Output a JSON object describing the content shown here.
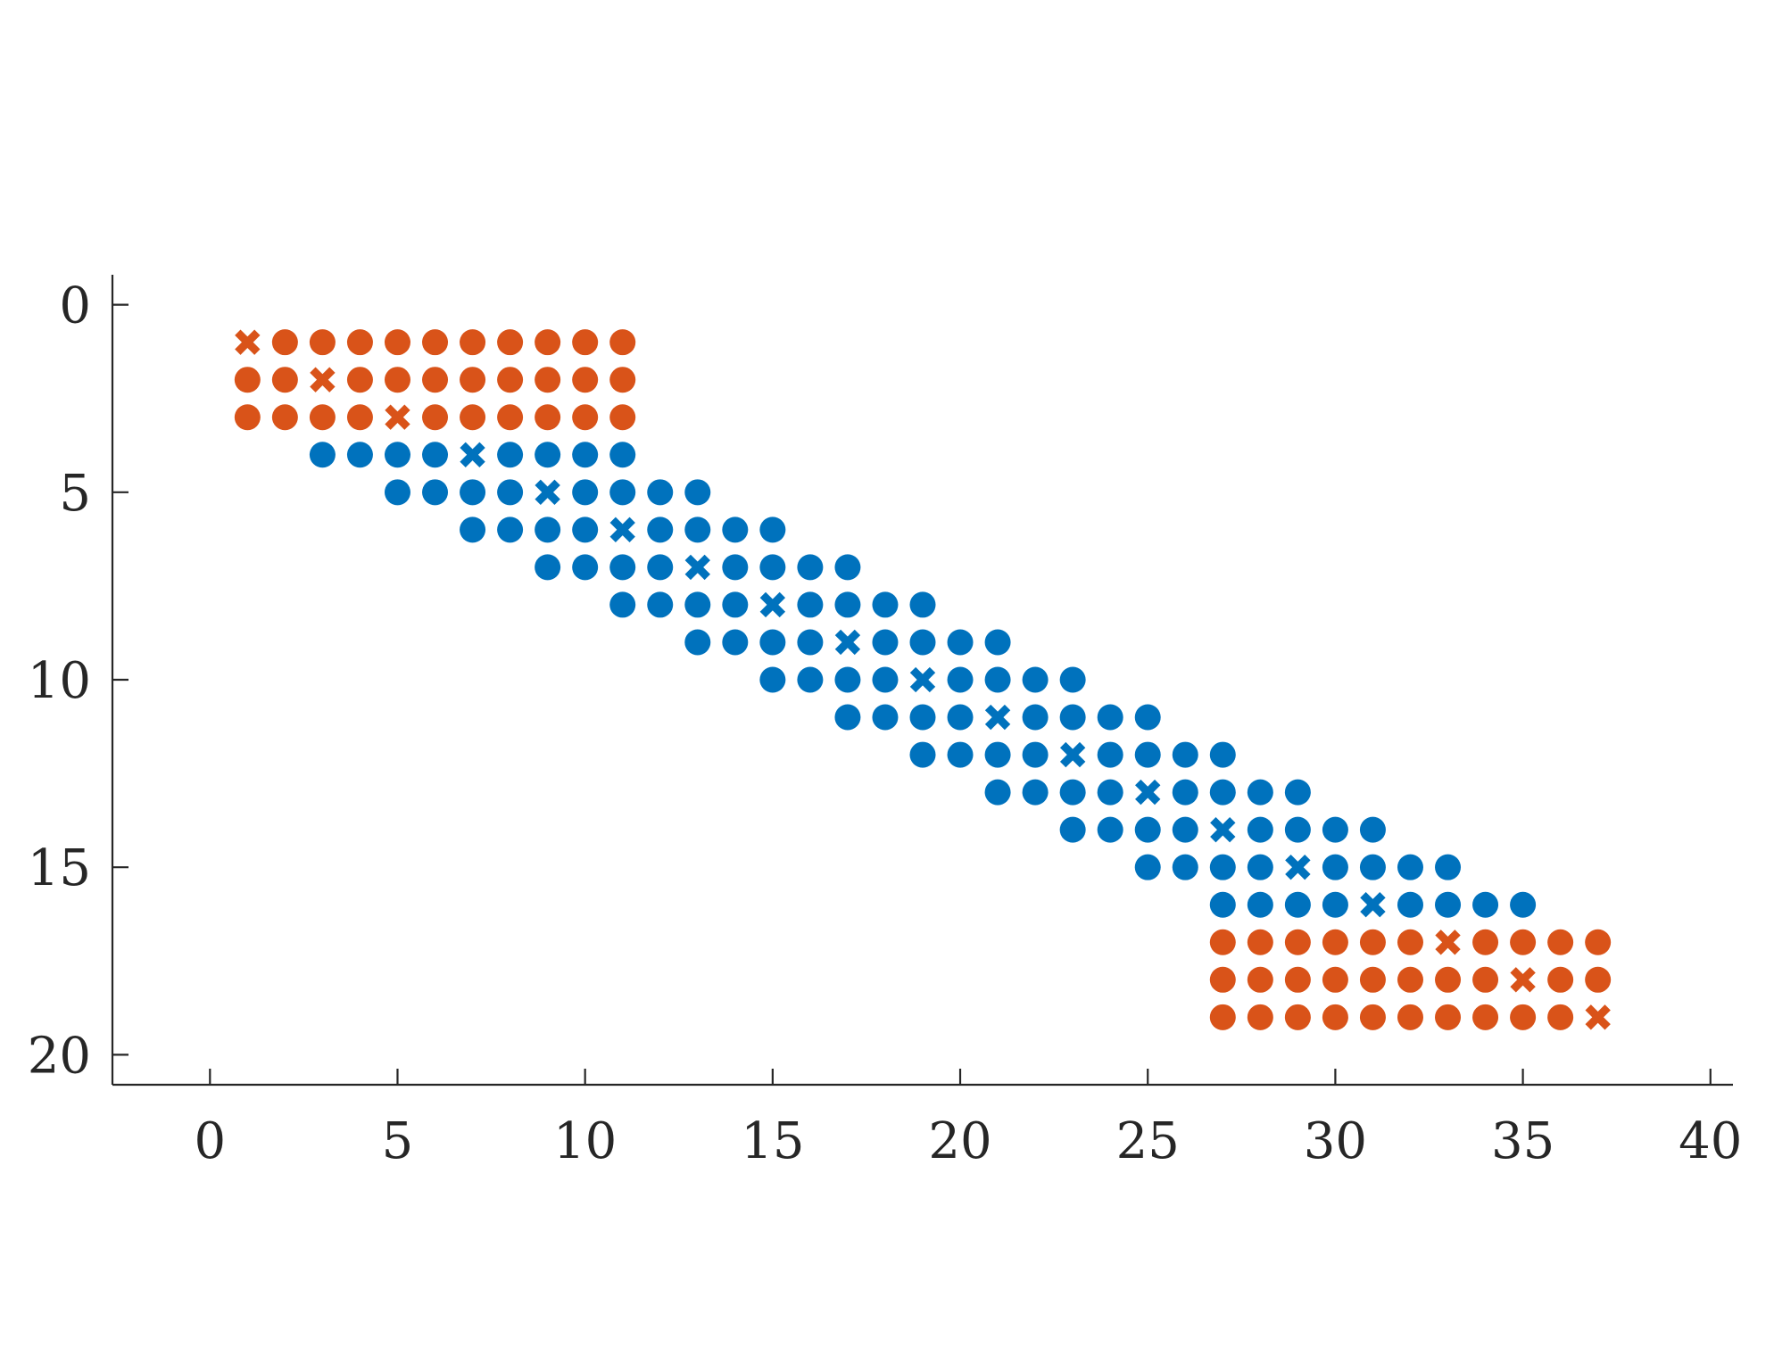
{
  "chart_data": {
    "type": "scatter",
    "title": "",
    "xlabel": "",
    "ylabel": "",
    "xlim": [
      -2.6,
      40.6
    ],
    "ylim": [
      -0.8,
      20.8
    ],
    "y_reversed": true,
    "xticks": [
      0,
      5,
      10,
      15,
      20,
      25,
      30,
      35,
      40
    ],
    "yticks": [
      0,
      5,
      10,
      15,
      20
    ],
    "grid": false,
    "legend": "none",
    "colors": {
      "orange": "#d95319",
      "blue": "#0072bd",
      "axis": "#262626"
    },
    "rows": [
      {
        "y": 1,
        "cols": [
          1,
          11
        ],
        "cross_x": 1,
        "color": "orange"
      },
      {
        "y": 2,
        "cols": [
          1,
          11
        ],
        "cross_x": 3,
        "color": "orange"
      },
      {
        "y": 3,
        "cols": [
          1,
          11
        ],
        "cross_x": 5,
        "color": "orange"
      },
      {
        "y": 4,
        "cols": [
          3,
          11
        ],
        "cross_x": 7,
        "color": "blue"
      },
      {
        "y": 5,
        "cols": [
          5,
          13
        ],
        "cross_x": 9,
        "color": "blue"
      },
      {
        "y": 6,
        "cols": [
          7,
          15
        ],
        "cross_x": 11,
        "color": "blue"
      },
      {
        "y": 7,
        "cols": [
          9,
          17
        ],
        "cross_x": 13,
        "color": "blue"
      },
      {
        "y": 8,
        "cols": [
          11,
          19
        ],
        "cross_x": 15,
        "color": "blue"
      },
      {
        "y": 9,
        "cols": [
          13,
          21
        ],
        "cross_x": 17,
        "color": "blue"
      },
      {
        "y": 10,
        "cols": [
          15,
          23
        ],
        "cross_x": 19,
        "color": "blue"
      },
      {
        "y": 11,
        "cols": [
          17,
          25
        ],
        "cross_x": 21,
        "color": "blue"
      },
      {
        "y": 12,
        "cols": [
          19,
          27
        ],
        "cross_x": 23,
        "color": "blue"
      },
      {
        "y": 13,
        "cols": [
          21,
          29
        ],
        "cross_x": 25,
        "color": "blue"
      },
      {
        "y": 14,
        "cols": [
          23,
          31
        ],
        "cross_x": 27,
        "color": "blue"
      },
      {
        "y": 15,
        "cols": [
          25,
          33
        ],
        "cross_x": 29,
        "color": "blue"
      },
      {
        "y": 16,
        "cols": [
          27,
          35
        ],
        "cross_x": 31,
        "color": "blue"
      },
      {
        "y": 17,
        "cols": [
          27,
          37
        ],
        "cross_x": 33,
        "color": "orange"
      },
      {
        "y": 18,
        "cols": [
          27,
          37
        ],
        "cross_x": 35,
        "color": "orange"
      },
      {
        "y": 19,
        "cols": [
          27,
          37
        ],
        "cross_x": 37,
        "color": "orange"
      }
    ]
  }
}
